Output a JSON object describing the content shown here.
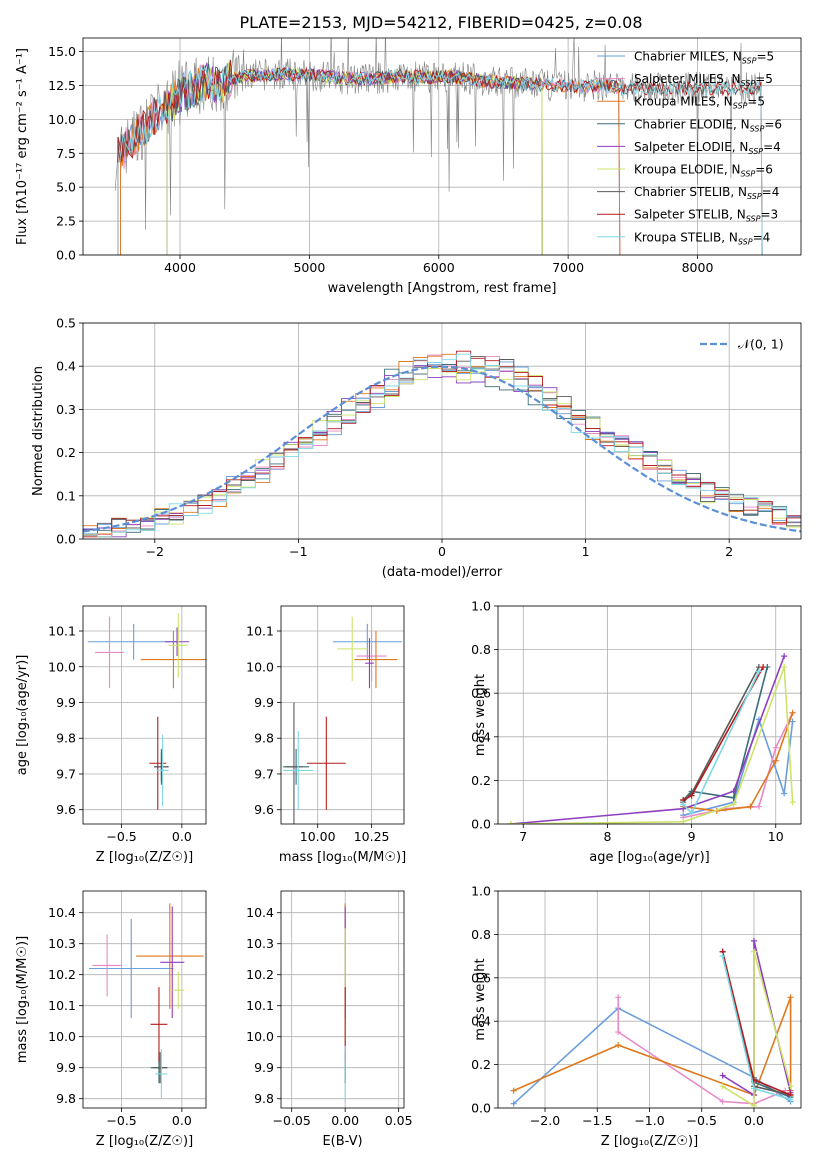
{
  "figure": {
    "title": "PLATE=2153, MJD=54212, FIBERID=0425, z=0.08"
  },
  "colors": {
    "Chabrier MILES": "#6b9edb",
    "Salpeter MILES": "#e88ac7",
    "Kroupa MILES": "#e0781d",
    "Chabrier ELODIE": "#3c6e77",
    "Salpeter ELODIE": "#8e3fbf",
    "Kroupa ELODIE": "#cde36a",
    "Chabrier STELIB": "#5a5a5a",
    "Salpeter STELIB": "#b51d1d",
    "Kroupa STELIB": "#7fd8e6",
    "spectrum": "#808080",
    "normal_curve": "#5b8fd6"
  },
  "chart_data": [
    {
      "id": "spectrum",
      "type": "line",
      "xlabel": "wavelength [Angstrom, rest frame]",
      "ylabel": "Flux [f$_\\lambda$10$^{-17}$ erg cm$^{-2}$ s$^{-1}$ A$^{-1}$]",
      "ylabel_display": "Flux [fλ10⁻¹⁷ erg cm⁻² s⁻¹ A⁻¹]",
      "xlim": [
        3250,
        8800
      ],
      "ylim": [
        0,
        16
      ],
      "xticks": [
        4000,
        5000,
        6000,
        7000,
        8000
      ],
      "yticks": [
        0.0,
        2.5,
        5.0,
        7.5,
        10.0,
        12.5,
        15.0
      ],
      "legend_position": "top-right",
      "legend": [
        {
          "label": "Chabrier MILES, N",
          "sub": "SSP",
          "eq": "=5"
        },
        {
          "label": "Salpeter MILES, N",
          "sub": "SSP",
          "eq": "=5"
        },
        {
          "label": "Kroupa MILES, N",
          "sub": "SSP",
          "eq": "=5"
        },
        {
          "label": "Chabrier ELODIE, N",
          "sub": "SSP",
          "eq": "=6"
        },
        {
          "label": "Salpeter ELODIE, N",
          "sub": "SSP",
          "eq": "=4"
        },
        {
          "label": "Kroupa ELODIE, N",
          "sub": "SSP",
          "eq": "=6"
        },
        {
          "label": "Chabrier STELIB, N",
          "sub": "SSP",
          "eq": "=4"
        },
        {
          "label": "Salpeter STELIB, N",
          "sub": "SSP",
          "eq": "=3"
        },
        {
          "label": "Kroupa STELIB, N",
          "sub": "SSP",
          "eq": "=4"
        }
      ],
      "continuum": {
        "x": [
          3500,
          3600,
          3700,
          3800,
          3900,
          4000,
          4100,
          4200,
          4300,
          4400,
          4500,
          4700,
          4900,
          5100,
          5300,
          5500,
          5700,
          5900,
          6100,
          6300,
          6500,
          6700,
          6900,
          7100,
          7300,
          7400
        ],
        "y": [
          7.0,
          8.2,
          9.2,
          10.2,
          11.0,
          11.8,
          12.3,
          12.8,
          12.5,
          13.0,
          13.2,
          13.3,
          13.3,
          13.2,
          13.0,
          13.0,
          13.2,
          13.1,
          13.2,
          12.9,
          12.7,
          12.6,
          12.5,
          12.4,
          12.5,
          12.3
        ]
      },
      "models_end": {
        "Chabrier MILES": 7400,
        "Salpeter MILES": 7400,
        "Kroupa MILES": 7400,
        "Chabrier ELODIE": 6800,
        "Salpeter ELODIE": 6800,
        "Kroupa ELODIE": 6800,
        "Chabrier STELIB": 8500,
        "Salpeter STELIB": 8500,
        "Kroupa STELIB": 8500
      }
    },
    {
      "id": "residuals",
      "type": "bar",
      "xlabel": "(data-model)/error",
      "ylabel": "Normed distribution",
      "xlim": [
        -2.5,
        2.5
      ],
      "ylim": [
        0,
        0.5
      ],
      "xticks": [
        -2,
        -1,
        0,
        1,
        2
      ],
      "yticks": [
        0.0,
        0.1,
        0.2,
        0.3,
        0.4,
        0.5
      ],
      "legend_label": "𝒩(0, 1)",
      "legend_position": "top-right",
      "bin_width": 0.1
    },
    {
      "id": "z-vs-age",
      "type": "scatter",
      "xlabel": "Z [log$_{10}$(Z/Z$_\\odot$)]",
      "xlabel_display": "Z [log₁₀(Z/Z☉)]",
      "ylabel": "age  [log$_{10}$(age/yr)]",
      "ylabel_display": "age  [log₁₀(age/yr)]",
      "xlim": [
        -0.82,
        0.2
      ],
      "ylim": [
        9.56,
        10.17
      ],
      "xticks": [
        -0.5,
        0.0
      ],
      "yticks": [
        9.6,
        9.7,
        9.8,
        9.9,
        10.0,
        10.1
      ],
      "points": [
        {
          "m": "Chabrier MILES",
          "x": -0.4,
          "xe": 0.38,
          "y": 10.07,
          "ye": 0.05
        },
        {
          "m": "Salpeter MILES",
          "x": -0.6,
          "xe": 0.12,
          "y": 10.04,
          "ye": 0.1
        },
        {
          "m": "Kroupa MILES",
          "x": -0.07,
          "xe": 0.27,
          "y": 10.02,
          "ye": 0.08
        },
        {
          "m": "Chabrier ELODIE",
          "x": -0.17,
          "xe": 0.06,
          "y": 9.72,
          "ye": 0.05
        },
        {
          "m": "Salpeter ELODIE",
          "x": -0.04,
          "xe": 0.1,
          "y": 10.07,
          "ye": 0.04
        },
        {
          "m": "Kroupa ELODIE",
          "x": -0.03,
          "xe": 0.08,
          "y": 10.06,
          "ye": 0.09
        },
        {
          "m": "Chabrier STELIB",
          "x": -0.17,
          "xe": 0.06,
          "y": 9.72,
          "ye": 0.04
        },
        {
          "m": "Salpeter STELIB",
          "x": -0.2,
          "xe": 0.07,
          "y": 9.73,
          "ye": 0.13
        },
        {
          "m": "Kroupa STELIB",
          "x": -0.16,
          "xe": 0.05,
          "y": 9.71,
          "ye": 0.1
        }
      ]
    },
    {
      "id": "mass-vs-age",
      "type": "scatter",
      "xlabel": "mass [log$_{10}$(M/M$_\\odot$)]",
      "xlabel_display": "mass [log₁₀(M/M☉)]",
      "xlim": [
        9.83,
        10.4
      ],
      "ylim": [
        9.56,
        10.17
      ],
      "xticks": [
        10.0,
        10.25
      ],
      "xtick_labels": [
        "10.00",
        "10.25"
      ],
      "yticks": [
        9.6,
        9.7,
        9.8,
        9.9,
        10.0,
        10.1
      ],
      "points": [
        {
          "m": "Chabrier MILES",
          "x": 10.23,
          "xe": 0.16,
          "y": 10.07,
          "ye": 0.05
        },
        {
          "m": "Salpeter MILES",
          "x": 10.25,
          "xe": 0.07,
          "y": 10.03,
          "ye": 0.07
        },
        {
          "m": "Kroupa MILES",
          "x": 10.27,
          "xe": 0.1,
          "y": 10.02,
          "ye": 0.08
        },
        {
          "m": "Chabrier ELODIE",
          "x": 9.9,
          "xe": 0.06,
          "y": 9.72,
          "ye": 0.05
        },
        {
          "m": "Salpeter ELODIE",
          "x": 10.24,
          "xe": 0.02,
          "y": 10.01,
          "ye": 0.07
        },
        {
          "m": "Kroupa ELODIE",
          "x": 10.16,
          "xe": 0.07,
          "y": 10.05,
          "ye": 0.09
        },
        {
          "m": "Chabrier STELIB",
          "x": 9.89,
          "xe": 0.04,
          "y": 9.72,
          "ye": 0.18
        },
        {
          "m": "Salpeter STELIB",
          "x": 10.04,
          "xe": 0.09,
          "y": 9.73,
          "ye": 0.13
        },
        {
          "m": "Kroupa STELIB",
          "x": 9.91,
          "xe": 0.07,
          "y": 9.71,
          "ye": 0.11
        }
      ]
    },
    {
      "id": "age-vs-weight",
      "type": "line",
      "xlabel": "age  [log$_{10}$(age/yr)]",
      "xlabel_display": "age  [log₁₀(age/yr)]",
      "ylabel": "mass weight",
      "xlim": [
        6.7,
        10.3
      ],
      "ylim": [
        0,
        1
      ],
      "xticks": [
        7,
        8,
        9,
        10
      ],
      "yticks": [
        0.0,
        0.2,
        0.4,
        0.6,
        0.8,
        1.0
      ],
      "series": [
        {
          "m": "Chabrier MILES",
          "x": [
            8.9,
            9.5,
            9.8,
            10.1,
            10.2
          ],
          "y": [
            0.04,
            0.1,
            0.48,
            0.14,
            0.47
          ]
        },
        {
          "m": "Salpeter MILES",
          "x": [
            8.9,
            9.4,
            9.8,
            10.0,
            10.2
          ],
          "y": [
            0.03,
            0.07,
            0.08,
            0.35,
            0.51
          ]
        },
        {
          "m": "Kroupa MILES",
          "x": [
            8.9,
            9.3,
            9.7,
            10.0,
            10.2
          ],
          "y": [
            0.08,
            0.06,
            0.08,
            0.29,
            0.51
          ]
        },
        {
          "m": "Chabrier ELODIE",
          "x": [
            8.9,
            9.0,
            9.5,
            9.9
          ],
          "y": [
            0.11,
            0.15,
            0.12,
            0.72
          ]
        },
        {
          "m": "Salpeter ELODIE",
          "x": [
            6.85,
            8.9,
            9.5,
            10.1
          ],
          "y": [
            0.0,
            0.07,
            0.15,
            0.77
          ]
        },
        {
          "m": "Kroupa ELODIE",
          "x": [
            6.85,
            8.9,
            9.5,
            10.1,
            10.2
          ],
          "y": [
            0.0,
            0.01,
            0.09,
            0.72,
            0.1
          ]
        },
        {
          "m": "Chabrier STELIB",
          "x": [
            8.9,
            9.0,
            9.8
          ],
          "y": [
            0.1,
            0.14,
            0.72
          ]
        },
        {
          "m": "Salpeter STELIB",
          "x": [
            8.9,
            9.0,
            9.85
          ],
          "y": [
            0.11,
            0.13,
            0.72
          ]
        },
        {
          "m": "Kroupa STELIB",
          "x": [
            8.9,
            9.0,
            9.8
          ],
          "y": [
            0.09,
            0.05,
            0.7
          ]
        }
      ]
    },
    {
      "id": "z-vs-mass",
      "type": "scatter",
      "xlabel": "Z [log$_{10}$(Z/Z$_\\odot$)]",
      "xlabel_display": "Z [log₁₀(Z/Z☉)]",
      "ylabel": "mass [log$_{10}$(M/M$_\\odot$)]",
      "ylabel_display": "mass [log₁₀(M/M☉)]",
      "xlim": [
        -0.82,
        0.2
      ],
      "ylim": [
        9.77,
        10.47
      ],
      "xticks": [
        -0.5,
        0.0
      ],
      "yticks": [
        9.8,
        9.9,
        10.0,
        10.1,
        10.2,
        10.3,
        10.4
      ],
      "points": [
        {
          "m": "Chabrier MILES",
          "x": -0.42,
          "xe": 0.35,
          "y": 10.22,
          "ye": 0.16
        },
        {
          "m": "Salpeter MILES",
          "x": -0.62,
          "xe": 0.12,
          "y": 10.23,
          "ye": 0.1
        },
        {
          "m": "Kroupa MILES",
          "x": -0.1,
          "xe": 0.28,
          "y": 10.26,
          "ye": 0.17
        },
        {
          "m": "Chabrier ELODIE",
          "x": -0.19,
          "xe": 0.07,
          "y": 9.9,
          "ye": 0.05
        },
        {
          "m": "Salpeter ELODIE",
          "x": -0.08,
          "xe": 0.1,
          "y": 10.24,
          "ye": 0.18
        },
        {
          "m": "Kroupa ELODIE",
          "x": -0.03,
          "xe": 0.05,
          "y": 10.15,
          "ye": 0.06
        },
        {
          "m": "Chabrier STELIB",
          "x": -0.18,
          "xe": 0.06,
          "y": 9.9,
          "ye": 0.05
        },
        {
          "m": "Salpeter STELIB",
          "x": -0.19,
          "xe": 0.07,
          "y": 10.04,
          "ye": 0.12
        },
        {
          "m": "Kroupa STELIB",
          "x": -0.17,
          "xe": 0.05,
          "y": 9.88,
          "ye": 0.08
        }
      ]
    },
    {
      "id": "ebv-vs-mass",
      "type": "scatter",
      "xlabel": "E(B-V)",
      "xlim": [
        -0.06,
        0.055
      ],
      "ylim": [
        9.77,
        10.47
      ],
      "xticks": [
        -0.05,
        0.0,
        0.05
      ],
      "xtick_labels": [
        "−0.05",
        "0.00",
        "0.05"
      ],
      "yticks": [
        9.8,
        9.9,
        10.0,
        10.1,
        10.2,
        10.3,
        10.4
      ],
      "points": [
        {
          "m": "Chabrier MILES",
          "x": 0.0,
          "xe": 0.0,
          "y": 10.22,
          "ye": 0.16
        },
        {
          "m": "Salpeter MILES",
          "x": 0.0,
          "xe": 0.0,
          "y": 10.24,
          "ye": 0.1
        },
        {
          "m": "Kroupa MILES",
          "x": 0.0,
          "xe": 0.0,
          "y": 10.26,
          "ye": 0.17
        },
        {
          "m": "Chabrier ELODIE",
          "x": 0.0,
          "xe": 0.0,
          "y": 9.9,
          "ye": 0.05
        },
        {
          "m": "Salpeter ELODIE",
          "x": 0.0,
          "xe": 0.0,
          "y": 10.24,
          "ye": 0.18
        },
        {
          "m": "Kroupa ELODIE",
          "x": 0.0,
          "xe": 0.0,
          "y": 10.15,
          "ye": 0.2
        },
        {
          "m": "Chabrier STELIB",
          "x": 0.0,
          "xe": 0.0,
          "y": 9.9,
          "ye": 0.05
        },
        {
          "m": "Salpeter STELIB",
          "x": 0.0,
          "xe": 0.0,
          "y": 10.04,
          "ye": 0.12
        },
        {
          "m": "Kroupa STELIB",
          "x": 0.0,
          "xe": 0.0,
          "y": 9.88,
          "ye": 0.09
        }
      ]
    },
    {
      "id": "z-vs-weight",
      "type": "line",
      "xlabel": "Z [log$_{10}$(Z/Z$_\\odot$)]",
      "xlabel_display": "Z [log₁₀(Z/Z☉)]",
      "ylabel": "mass weight",
      "xlim": [
        -2.45,
        0.45
      ],
      "ylim": [
        0,
        1
      ],
      "xticks": [
        -2.0,
        -1.5,
        -1.0,
        -0.5,
        0.0
      ],
      "xtick_labels": [
        "−2.0",
        "−1.5",
        "−1.0",
        "−0.5",
        "0.0"
      ],
      "yticks": [
        0.0,
        0.2,
        0.4,
        0.6,
        0.8,
        1.0
      ],
      "series": [
        {
          "m": "Chabrier MILES",
          "x": [
            -2.3,
            -1.3,
            0.0,
            0.35
          ],
          "y": [
            0.02,
            0.46,
            0.14,
            0.03
          ]
        },
        {
          "m": "Salpeter MILES",
          "x": [
            -1.3,
            -1.3,
            -0.3,
            0.0,
            0.3
          ],
          "y": [
            0.51,
            0.35,
            0.03,
            0.02,
            0.08
          ]
        },
        {
          "m": "Kroupa MILES",
          "x": [
            -2.3,
            -1.3,
            0.0,
            0.35,
            0.35
          ],
          "y": [
            0.08,
            0.29,
            0.06,
            0.51,
            0.08
          ]
        },
        {
          "m": "Chabrier ELODIE",
          "x": [
            -0.3,
            0.0,
            0.35
          ],
          "y": [
            0.72,
            0.12,
            0.05
          ]
        },
        {
          "m": "Salpeter ELODIE",
          "x": [
            -0.3,
            0.0,
            0.0,
            0.35
          ],
          "y": [
            0.15,
            0.06,
            0.77,
            0.07
          ]
        },
        {
          "m": "Kroupa ELODIE",
          "x": [
            -0.3,
            0.0,
            0.0,
            0.35
          ],
          "y": [
            0.1,
            0.01,
            0.72,
            0.1
          ]
        },
        {
          "m": "Chabrier STELIB",
          "x": [
            -0.3,
            0.0,
            0.35
          ],
          "y": [
            0.72,
            0.1,
            0.06
          ]
        },
        {
          "m": "Salpeter STELIB",
          "x": [
            -0.3,
            0.0,
            0.35
          ],
          "y": [
            0.72,
            0.13,
            0.06
          ]
        },
        {
          "m": "Kroupa STELIB",
          "x": [
            -0.3,
            0.0,
            0.35
          ],
          "y": [
            0.7,
            0.09,
            0.04
          ]
        }
      ]
    }
  ]
}
